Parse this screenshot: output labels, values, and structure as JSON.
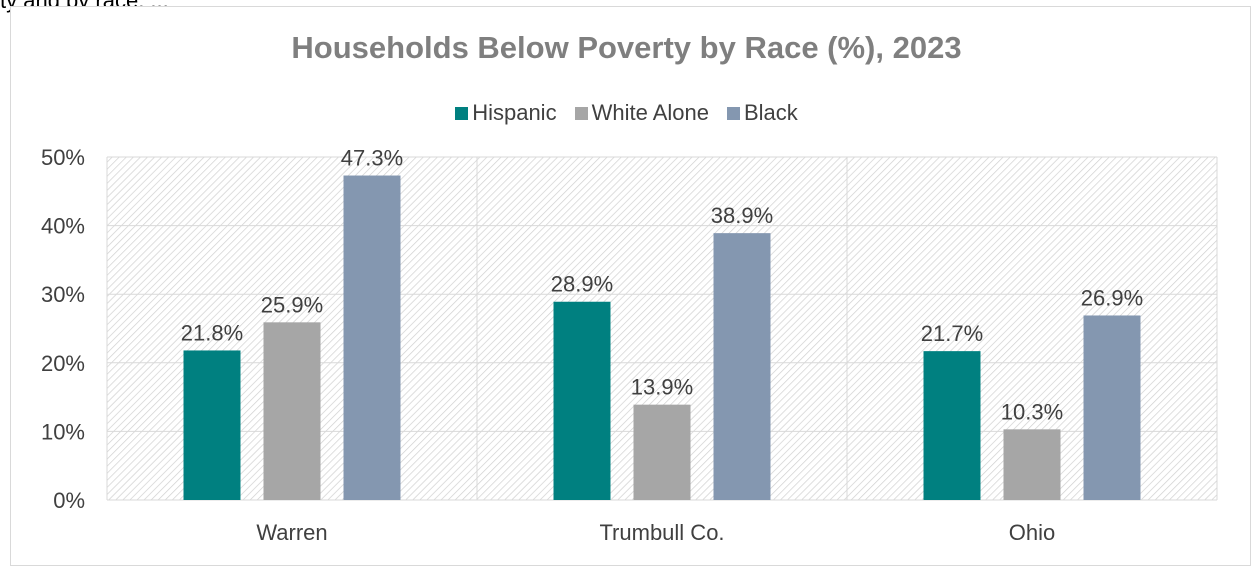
{
  "top_text_fragment": "ty and by race, ...",
  "chart_data": {
    "type": "bar",
    "title": "Households Below Poverty by Race (%), 2023",
    "categories": [
      "Warren",
      "Trumbull Co.",
      "Ohio"
    ],
    "series": [
      {
        "name": "Hispanic",
        "color": "#008080",
        "values": [
          21.8,
          28.9,
          21.7
        ],
        "labels": [
          "21.8%",
          "28.9%",
          "21.7%"
        ]
      },
      {
        "name": "White Alone",
        "color": "#a6a6a6",
        "values": [
          25.9,
          13.9,
          10.3
        ],
        "labels": [
          "25.9%",
          "13.9%",
          "10.3%"
        ]
      },
      {
        "name": "Black",
        "color": "#8497b0",
        "values": [
          47.3,
          38.9,
          26.9
        ],
        "labels": [
          "47.3%",
          "38.9%",
          "26.9%"
        ]
      }
    ],
    "ylim": [
      0,
      50
    ],
    "yticks": [
      0,
      10,
      20,
      30,
      40,
      50
    ],
    "ytick_labels": [
      "0%",
      "10%",
      "20%",
      "30%",
      "40%",
      "50%"
    ],
    "legend_position": "top",
    "grid": true,
    "plot_background": "hatched"
  }
}
